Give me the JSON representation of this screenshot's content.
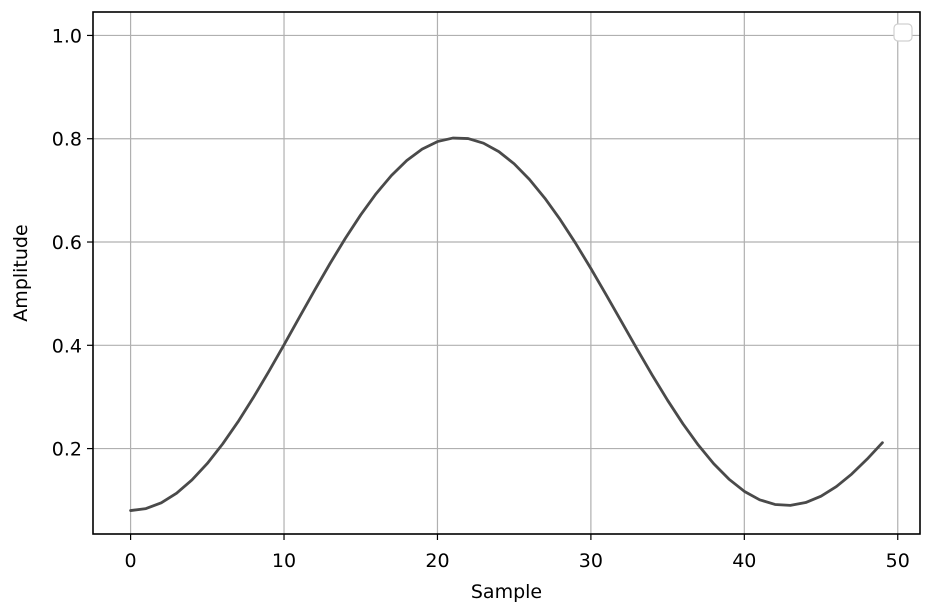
{
  "chart_data": {
    "type": "line",
    "xlabel": "Sample",
    "ylabel": "Amplitude",
    "xlim": [
      -2.45,
      51.45
    ],
    "ylim": [
      0.0346,
      1.0454
    ],
    "xticks": [
      0,
      10,
      20,
      30,
      40,
      50
    ],
    "xtick_labels": [
      "0",
      "10",
      "20",
      "30",
      "40",
      "50"
    ],
    "yticks": [
      0.2,
      0.4,
      0.6,
      0.8,
      1.0
    ],
    "ytick_labels": [
      "0.2",
      "0.4",
      "0.6",
      "0.8",
      "1.0"
    ],
    "grid": true,
    "legend": {
      "placement": "upper right",
      "entries": []
    },
    "series": [
      {
        "color": "#4a4a4a",
        "x": [
          0,
          1,
          2,
          3,
          4,
          5,
          6,
          7,
          8,
          9,
          10,
          11,
          12,
          13,
          14,
          15,
          16,
          17,
          18,
          19,
          20,
          21,
          22,
          23,
          24,
          25,
          26,
          27,
          28,
          29,
          30,
          31,
          32,
          33,
          34,
          35,
          36,
          37,
          38,
          39,
          40,
          41,
          42,
          43,
          44,
          45,
          46,
          47,
          48,
          49
        ],
        "y": [
          0.08,
          0.0838,
          0.0951,
          0.1137,
          0.1392,
          0.1712,
          0.209,
          0.2518,
          0.2988,
          0.3489,
          0.401,
          0.4541,
          0.5069,
          0.5584,
          0.6073,
          0.6527,
          0.6935,
          0.7288,
          0.7578,
          0.7799,
          0.7945,
          0.8013,
          0.8003,
          0.7914,
          0.775,
          0.7514,
          0.7211,
          0.6848,
          0.6434,
          0.5977,
          0.5487,
          0.4976,
          0.4454,
          0.3932,
          0.3422,
          0.2935,
          0.248,
          0.2069,
          0.1709,
          0.1408,
          0.1172,
          0.1008,
          0.0918,
          0.09,
          0.0955,
          0.1079,
          0.1265,
          0.1507,
          0.1795,
          0.2114
        ]
      }
    ]
  }
}
